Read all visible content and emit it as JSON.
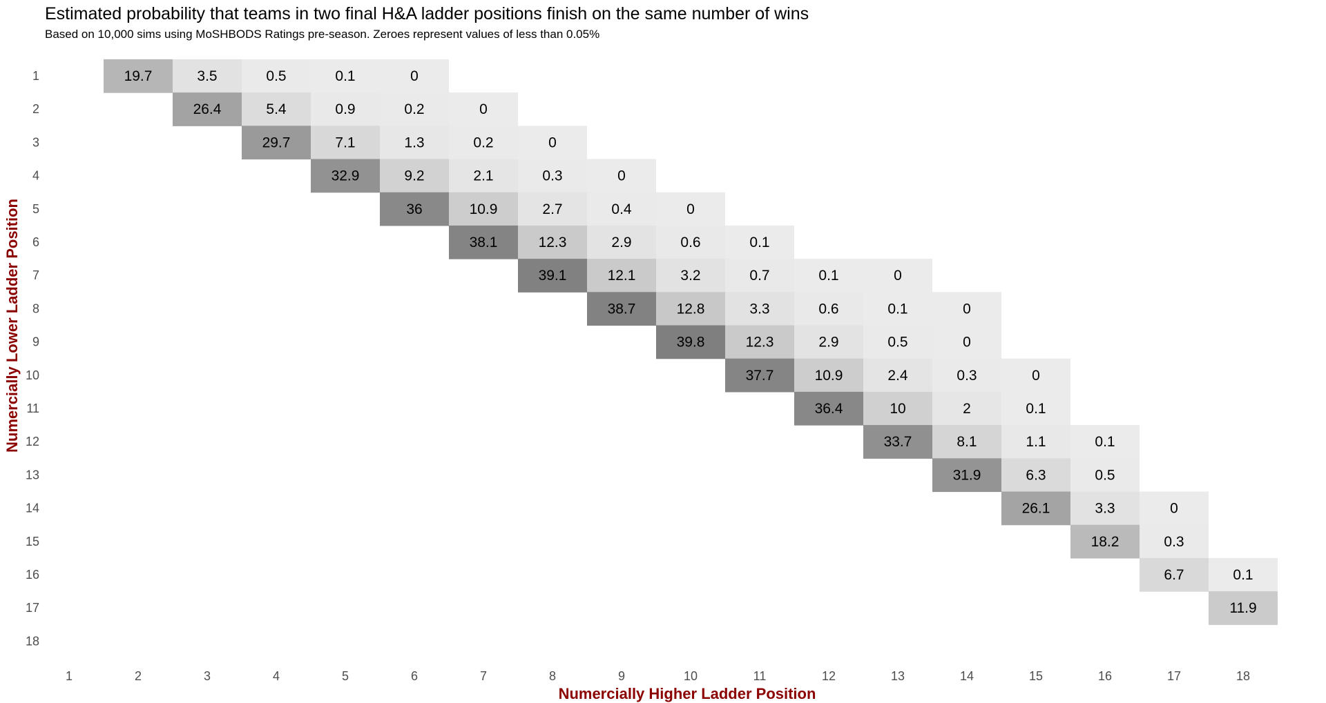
{
  "chart_data": {
    "type": "heatmap",
    "title": "Estimated probability that teams in two final H&A ladder positions finish on the same number of wins",
    "subtitle": "Based on 10,000 sims using MoSHBODS Ratings pre-season. Zeroes represent values of less than 0.05%",
    "xlabel": "Numercially Higher Ladder Position",
    "ylabel": "Numercially Lower Ladder Position",
    "x_ticks": [
      "1",
      "2",
      "3",
      "4",
      "5",
      "6",
      "7",
      "8",
      "9",
      "10",
      "11",
      "12",
      "13",
      "14",
      "15",
      "16",
      "17",
      "18"
    ],
    "y_ticks": [
      "1",
      "2",
      "3",
      "4",
      "5",
      "6",
      "7",
      "8",
      "9",
      "10",
      "11",
      "12",
      "13",
      "14",
      "15",
      "16",
      "17",
      "18"
    ],
    "color_low": "#ebebeb",
    "color_high": "#7f7f7f",
    "grid": false,
    "cells": [
      {
        "x": 2,
        "y": 1,
        "value": 19.7
      },
      {
        "x": 3,
        "y": 1,
        "value": 3.5
      },
      {
        "x": 4,
        "y": 1,
        "value": 0.5
      },
      {
        "x": 5,
        "y": 1,
        "value": 0.1
      },
      {
        "x": 6,
        "y": 1,
        "value": 0
      },
      {
        "x": 3,
        "y": 2,
        "value": 26.4
      },
      {
        "x": 4,
        "y": 2,
        "value": 5.4
      },
      {
        "x": 5,
        "y": 2,
        "value": 0.9
      },
      {
        "x": 6,
        "y": 2,
        "value": 0.2
      },
      {
        "x": 7,
        "y": 2,
        "value": 0
      },
      {
        "x": 4,
        "y": 3,
        "value": 29.7
      },
      {
        "x": 5,
        "y": 3,
        "value": 7.1
      },
      {
        "x": 6,
        "y": 3,
        "value": 1.3
      },
      {
        "x": 7,
        "y": 3,
        "value": 0.2
      },
      {
        "x": 8,
        "y": 3,
        "value": 0
      },
      {
        "x": 5,
        "y": 4,
        "value": 32.9
      },
      {
        "x": 6,
        "y": 4,
        "value": 9.2
      },
      {
        "x": 7,
        "y": 4,
        "value": 2.1
      },
      {
        "x": 8,
        "y": 4,
        "value": 0.3
      },
      {
        "x": 9,
        "y": 4,
        "value": 0
      },
      {
        "x": 6,
        "y": 5,
        "value": 36
      },
      {
        "x": 7,
        "y": 5,
        "value": 10.9
      },
      {
        "x": 8,
        "y": 5,
        "value": 2.7
      },
      {
        "x": 9,
        "y": 5,
        "value": 0.4
      },
      {
        "x": 10,
        "y": 5,
        "value": 0
      },
      {
        "x": 7,
        "y": 6,
        "value": 38.1
      },
      {
        "x": 8,
        "y": 6,
        "value": 12.3
      },
      {
        "x": 9,
        "y": 6,
        "value": 2.9
      },
      {
        "x": 10,
        "y": 6,
        "value": 0.6
      },
      {
        "x": 11,
        "y": 6,
        "value": 0.1
      },
      {
        "x": 8,
        "y": 7,
        "value": 39.1
      },
      {
        "x": 9,
        "y": 7,
        "value": 12.1
      },
      {
        "x": 10,
        "y": 7,
        "value": 3.2
      },
      {
        "x": 11,
        "y": 7,
        "value": 0.7
      },
      {
        "x": 12,
        "y": 7,
        "value": 0.1
      },
      {
        "x": 13,
        "y": 7,
        "value": 0
      },
      {
        "x": 9,
        "y": 8,
        "value": 38.7
      },
      {
        "x": 10,
        "y": 8,
        "value": 12.8
      },
      {
        "x": 11,
        "y": 8,
        "value": 3.3
      },
      {
        "x": 12,
        "y": 8,
        "value": 0.6
      },
      {
        "x": 13,
        "y": 8,
        "value": 0.1
      },
      {
        "x": 14,
        "y": 8,
        "value": 0
      },
      {
        "x": 10,
        "y": 9,
        "value": 39.8
      },
      {
        "x": 11,
        "y": 9,
        "value": 12.3
      },
      {
        "x": 12,
        "y": 9,
        "value": 2.9
      },
      {
        "x": 13,
        "y": 9,
        "value": 0.5
      },
      {
        "x": 14,
        "y": 9,
        "value": 0
      },
      {
        "x": 11,
        "y": 10,
        "value": 37.7
      },
      {
        "x": 12,
        "y": 10,
        "value": 10.9
      },
      {
        "x": 13,
        "y": 10,
        "value": 2.4
      },
      {
        "x": 14,
        "y": 10,
        "value": 0.3
      },
      {
        "x": 15,
        "y": 10,
        "value": 0
      },
      {
        "x": 12,
        "y": 11,
        "value": 36.4
      },
      {
        "x": 13,
        "y": 11,
        "value": 10
      },
      {
        "x": 14,
        "y": 11,
        "value": 2
      },
      {
        "x": 15,
        "y": 11,
        "value": 0.1
      },
      {
        "x": 13,
        "y": 12,
        "value": 33.7
      },
      {
        "x": 14,
        "y": 12,
        "value": 8.1
      },
      {
        "x": 15,
        "y": 12,
        "value": 1.1
      },
      {
        "x": 16,
        "y": 12,
        "value": 0.1
      },
      {
        "x": 14,
        "y": 13,
        "value": 31.9
      },
      {
        "x": 15,
        "y": 13,
        "value": 6.3
      },
      {
        "x": 16,
        "y": 13,
        "value": 0.5
      },
      {
        "x": 15,
        "y": 14,
        "value": 26.1
      },
      {
        "x": 16,
        "y": 14,
        "value": 3.3
      },
      {
        "x": 17,
        "y": 14,
        "value": 0
      },
      {
        "x": 16,
        "y": 15,
        "value": 18.2
      },
      {
        "x": 17,
        "y": 15,
        "value": 0.3
      },
      {
        "x": 17,
        "y": 16,
        "value": 6.7
      },
      {
        "x": 18,
        "y": 16,
        "value": 0.1
      },
      {
        "x": 18,
        "y": 17,
        "value": 11.9
      }
    ]
  }
}
